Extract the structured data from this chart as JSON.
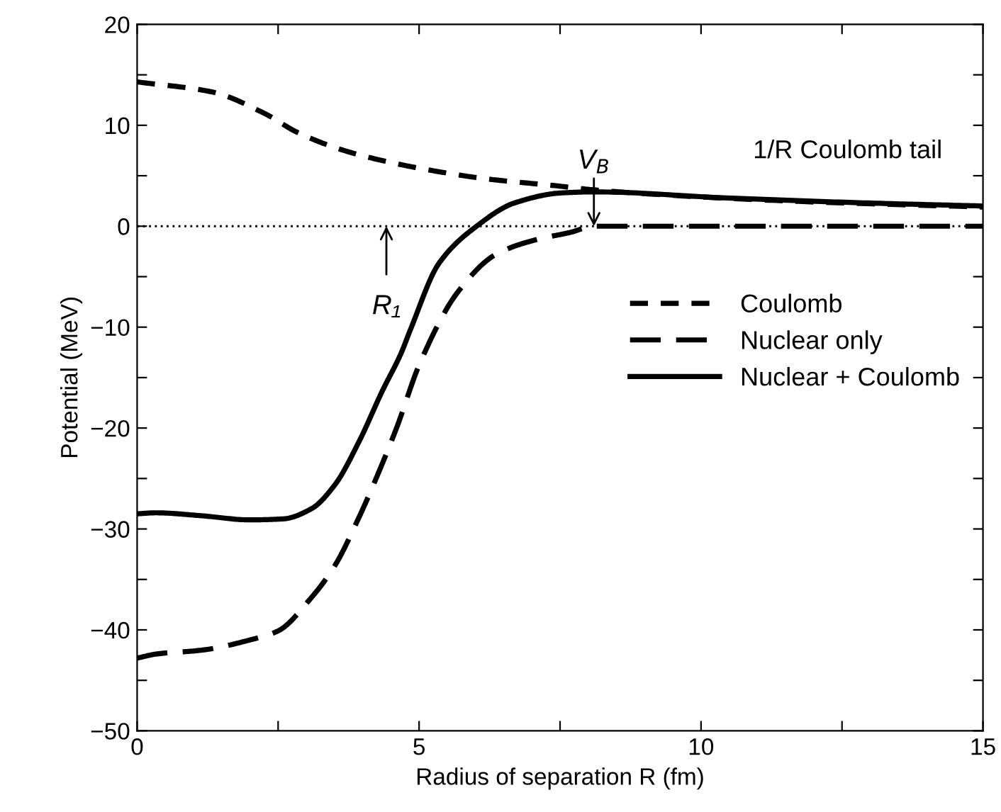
{
  "chart_data": {
    "type": "line",
    "xlabel": "Radius of separation R (fm)",
    "ylabel": "Potential (MeV)",
    "xlim": [
      0,
      15
    ],
    "ylim": [
      -50,
      20
    ],
    "xticks": [
      0,
      {
        "value": 2.5,
        "label": null
      },
      5,
      {
        "value": 7.5,
        "label": null
      },
      10,
      {
        "value": 12.5,
        "label": null
      },
      15
    ],
    "yticks": [
      -50,
      {
        "value": -45,
        "label": null
      },
      -40,
      {
        "value": -35,
        "label": null
      },
      -30,
      {
        "value": -25,
        "label": null
      },
      -20,
      {
        "value": -15,
        "label": null
      },
      -10,
      {
        "value": -5,
        "label": null
      },
      0,
      {
        "value": 5,
        "label": null
      },
      10,
      {
        "value": 15,
        "label": null
      },
      20
    ],
    "legend": "center right",
    "grid": false,
    "ref_lines": [
      {
        "axis": "y",
        "value": 0,
        "line_style": "dotted",
        "color": "#000000"
      }
    ],
    "series": [
      {
        "name": "Coulomb",
        "color": "#000000",
        "line_style": "dashed",
        "x": [
          0,
          1.33,
          2.25,
          2.84,
          3.67,
          4.51,
          5.35,
          6.18,
          7.44,
          8.1,
          10,
          12,
          15
        ],
        "values": [
          14.3,
          13.3,
          11.2,
          9.3,
          7.5,
          6.3,
          5.4,
          4.7,
          4.0,
          3.6,
          2.9,
          2.4,
          1.9
        ]
      },
      {
        "name": "Nuclear only",
        "color": "#000000",
        "line_style": "longdash",
        "x": [
          0,
          0.33,
          1.16,
          2.0,
          2.5,
          3.09,
          3.51,
          3.93,
          4.26,
          4.6,
          5.02,
          5.69,
          6.36,
          7.03,
          7.69,
          8.1,
          10,
          12,
          15
        ],
        "values": [
          -42.8,
          -42.4,
          -42.0,
          -41.0,
          -40.1,
          -36.8,
          -33.6,
          -28.9,
          -24.7,
          -20,
          -13.5,
          -6.5,
          -2.8,
          -1.4,
          -0.6,
          0,
          0,
          0,
          0
        ]
      },
      {
        "name": "Nuclear + Coulomb",
        "color": "#000000",
        "line_style": "solid",
        "x": [
          0,
          0.33,
          1.16,
          2.0,
          2.59,
          3.09,
          3.51,
          3.93,
          4.35,
          4.68,
          4.85,
          5.35,
          6.02,
          6.69,
          7.53,
          8.1,
          10.45,
          12.96,
          15
        ],
        "values": [
          -28.5,
          -28.4,
          -28.7,
          -29.1,
          -29.0,
          -28.0,
          -25.6,
          -21.4,
          -16.3,
          -12.6,
          -10.2,
          -3.7,
          0,
          2.3,
          3.3,
          3.4,
          2.8,
          2.3,
          2.0
        ]
      }
    ],
    "annotations": [
      {
        "text": "R₁",
        "x": 4.42,
        "y": 0
      },
      {
        "text": "V$_{B}$",
        "x": 8.1,
        "y": 3.4
      },
      "1/R Coulomb tail"
    ]
  }
}
